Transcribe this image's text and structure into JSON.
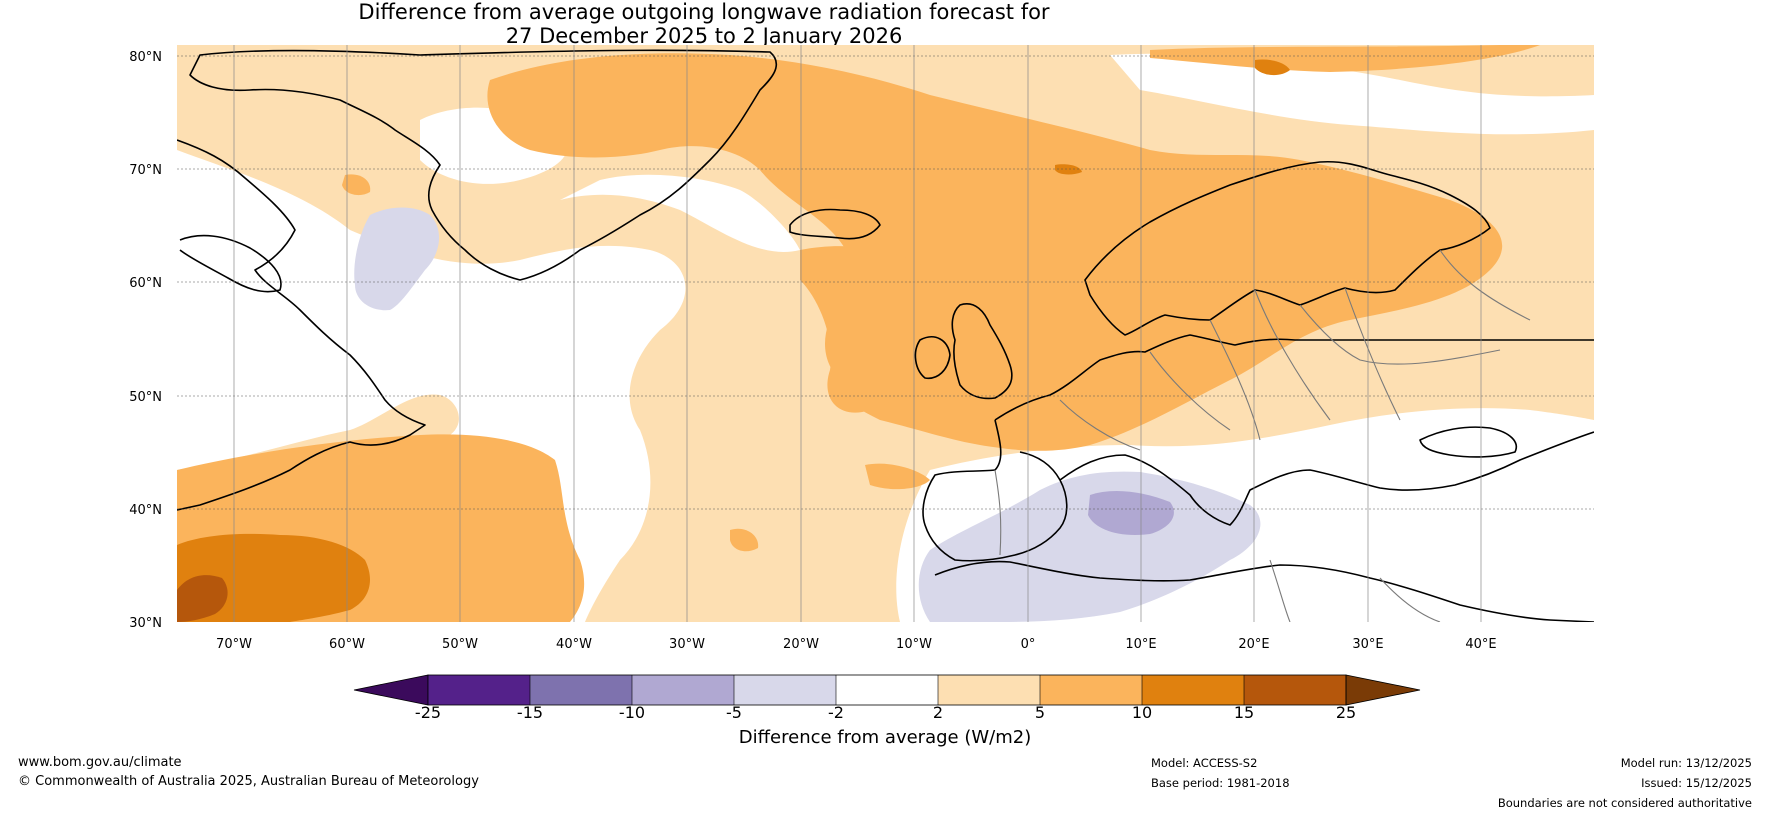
{
  "title": {
    "line1": "Difference from average outgoing longwave radiation forecast for",
    "line2": "27 December 2025 to 2 January 2026"
  },
  "map": {
    "lat_ticks": [
      "80°N",
      "70°N",
      "60°N",
      "50°N",
      "40°N",
      "30°N"
    ],
    "lon_ticks": [
      "70°W",
      "60°W",
      "50°W",
      "40°W",
      "30°W",
      "20°W",
      "10°W",
      "0°",
      "10°E",
      "20°E",
      "30°E",
      "40°E"
    ]
  },
  "colorbar": {
    "title": "Difference from average (W/m2)",
    "labels": [
      "-25",
      "-15",
      "-10",
      "-5",
      "-2",
      "2",
      "5",
      "10",
      "15",
      "25"
    ],
    "colors": [
      "#3b0a5c",
      "#54218a",
      "#7e72ae",
      "#b0a8d2",
      "#d8d8ea",
      "#ffffff",
      "#fddfb2",
      "#fbb45c",
      "#e0810f",
      "#b5570c",
      "#7a3b06"
    ]
  },
  "footer": {
    "url": "www.bom.gov.au/climate",
    "copyright": "© Commonwealth of Australia 2025, Australian Bureau of Meteorology",
    "model": "Model: ACCESS-S2",
    "base_period": "Base period: 1981-2018",
    "model_run": "Model run: 13/12/2025",
    "issued": "Issued: 15/12/2025",
    "disclaimer": "Boundaries are not considered authoritative"
  }
}
